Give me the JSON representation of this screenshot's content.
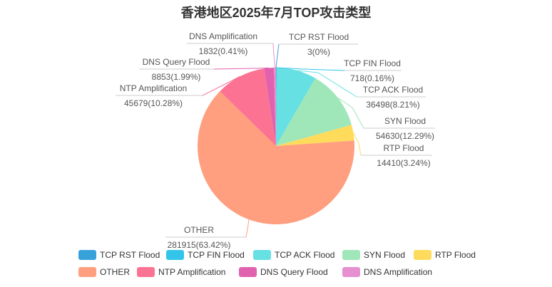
{
  "chart_data": {
    "type": "pie",
    "title": "香港地区2025年7月TOP攻击类型",
    "legend_position": "bottom",
    "categories": [
      "TCP RST Flood",
      "TCP FIN Flood",
      "TCP ACK Flood",
      "SYN Flood",
      "RTP Flood",
      "OTHER",
      "NTP Amplification",
      "DNS Query Flood",
      "DNS Amplification"
    ],
    "values": [
      3,
      718,
      36498,
      54630,
      14410,
      281915,
      45679,
      8853,
      1832
    ],
    "percents": [
      0,
      0.16,
      8.21,
      12.29,
      3.24,
      63.42,
      10.28,
      1.99,
      0.41
    ],
    "value_labels": [
      "3(0%)",
      "718(0.16%)",
      "36498(8.21%)",
      "54630(12.29%)",
      "14410(3.24%)",
      "281915(63.42%)",
      "45679(10.28%)",
      "8853(1.99%)",
      "1832(0.41%)"
    ],
    "colors": [
      "#37A2DA",
      "#32C5E9",
      "#67E0E3",
      "#9FE6B8",
      "#FFDB5C",
      "#FF9F7F",
      "#FB7293",
      "#E062AE",
      "#E690D1"
    ]
  }
}
